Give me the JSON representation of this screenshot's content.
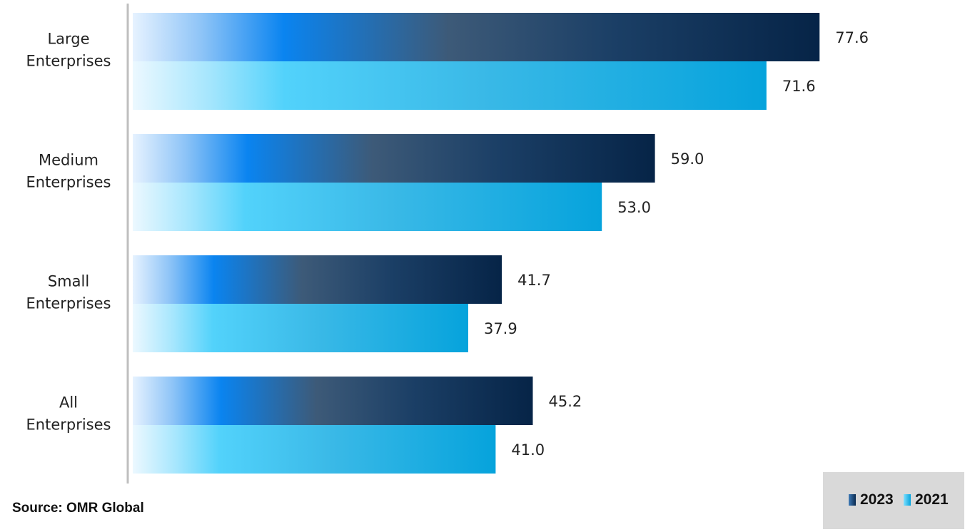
{
  "chart_data": {
    "type": "bar",
    "orientation": "horizontal",
    "categories": [
      "Large\nEnterprises",
      "Medium\nEnterprises",
      "Small\nEnterprises",
      "All\nEnterprises"
    ],
    "series": [
      {
        "name": "2023",
        "values": [
          77.6,
          59.0,
          41.7,
          45.2
        ],
        "labels": [
          "77.6",
          "59.0",
          "41.7",
          "45.2"
        ],
        "color": "#0a2a4f"
      },
      {
        "name": "2021",
        "values": [
          71.6,
          53.0,
          37.9,
          41.0
        ],
        "labels": [
          "71.6",
          "53.0",
          "37.9",
          "41.0"
        ],
        "color": "#0ea5dc"
      }
    ],
    "xlim": [
      0,
      100
    ],
    "grid": false,
    "legend_position": "bottom-right"
  },
  "source": "Source: OMR Global",
  "legend": [
    {
      "label": "2023",
      "color": "#1d4f7c"
    },
    {
      "label": "2021",
      "color": "#2bb9ec"
    }
  ]
}
